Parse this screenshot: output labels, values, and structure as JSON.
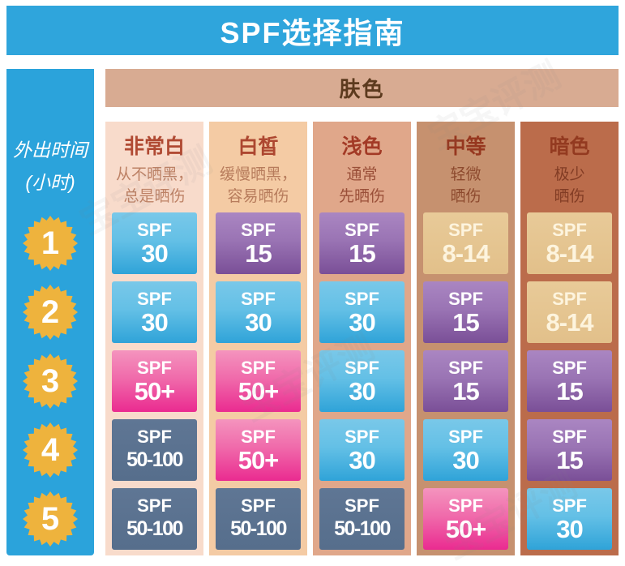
{
  "title": "SPF选择指南",
  "header": {
    "skin_label": "肤色"
  },
  "sidebar": {
    "label": "外出时间\n(小时)"
  },
  "watermark": "宝宝评测",
  "columns": [
    {
      "title": "非常白",
      "desc": "从不晒黑，\n总是晒伤",
      "bg": "#f8dbcb",
      "title_color": "#b04a33",
      "desc_color": "#bd8165"
    },
    {
      "title": "白皙",
      "desc": "缓慢晒黑，\n容易晒伤",
      "bg": "#f4cba4",
      "title_color": "#ad4730",
      "desc_color": "#b77c5c"
    },
    {
      "title": "浅色",
      "desc": "通常\n先晒伤",
      "bg": "#e0a78a",
      "title_color": "#a33a26",
      "desc_color": "#9a4f38"
    },
    {
      "title": "中等",
      "desc": "轻微\n晒伤",
      "bg": "#c6916f",
      "title_color": "#96371f",
      "desc_color": "#8d4a2e"
    },
    {
      "title": "暗色",
      "desc": "极少\n晒伤",
      "bg": "#bb6c4b",
      "title_color": "#933a20",
      "desc_color": "#823c24"
    }
  ],
  "rows": [
    {
      "hours": "1",
      "cells": [
        {
          "label": "SPF",
          "value": "30",
          "style": "blue"
        },
        {
          "label": "SPF",
          "value": "15",
          "style": "purple"
        },
        {
          "label": "SPF",
          "value": "15",
          "style": "purple"
        },
        {
          "label": "SPF",
          "value": "8-14",
          "style": "tan"
        },
        {
          "label": "SPF",
          "value": "8-14",
          "style": "tan"
        }
      ]
    },
    {
      "hours": "2",
      "cells": [
        {
          "label": "SPF",
          "value": "30",
          "style": "blue"
        },
        {
          "label": "SPF",
          "value": "30",
          "style": "blue"
        },
        {
          "label": "SPF",
          "value": "30",
          "style": "blue"
        },
        {
          "label": "SPF",
          "value": "15",
          "style": "purple"
        },
        {
          "label": "SPF",
          "value": "8-14",
          "style": "tan"
        }
      ]
    },
    {
      "hours": "3",
      "cells": [
        {
          "label": "SPF",
          "value": "50+",
          "style": "pink"
        },
        {
          "label": "SPF",
          "value": "50+",
          "style": "pink"
        },
        {
          "label": "SPF",
          "value": "30",
          "style": "blue"
        },
        {
          "label": "SPF",
          "value": "15",
          "style": "purple"
        },
        {
          "label": "SPF",
          "value": "15",
          "style": "purple"
        }
      ]
    },
    {
      "hours": "4",
      "cells": [
        {
          "label": "SPF",
          "value": "50-100",
          "style": "slate"
        },
        {
          "label": "SPF",
          "value": "50+",
          "style": "pink"
        },
        {
          "label": "SPF",
          "value": "30",
          "style": "blue"
        },
        {
          "label": "SPF",
          "value": "30",
          "style": "blue"
        },
        {
          "label": "SPF",
          "value": "15",
          "style": "purple"
        }
      ]
    },
    {
      "hours": "5",
      "cells": [
        {
          "label": "SPF",
          "value": "50-100",
          "style": "slate"
        },
        {
          "label": "SPF",
          "value": "50-100",
          "style": "slate"
        },
        {
          "label": "SPF",
          "value": "50-100",
          "style": "slate"
        },
        {
          "label": "SPF",
          "value": "50+",
          "style": "pink"
        },
        {
          "label": "SPF",
          "value": "30",
          "style": "blue"
        }
      ]
    }
  ],
  "colors": {
    "accent_blue": "#2fa5dc",
    "skin_bar_tan": "#d8ab92",
    "badge_yellow": "#eeb33d",
    "chip_blue_top": "#79c8e9",
    "chip_blue_bottom": "#2fa3d8",
    "chip_purple_top": "#aa86c2",
    "chip_purple_bottom": "#7a4f97",
    "chip_pink_top": "#f494be",
    "chip_pink_bottom": "#ea2b90",
    "chip_tan": "#e2c08a",
    "chip_slate": "#5a7290"
  },
  "chart_data": {
    "type": "table",
    "title": "SPF选择指南",
    "column_group_label": "肤色",
    "row_group_label": "外出时间(小时)",
    "columns": [
      "非常白 (从不晒黑，总是晒伤)",
      "白皙 (缓慢晒黑，容易晒伤)",
      "浅色 (通常先晒伤)",
      "中等 (轻微晒伤)",
      "暗色 (极少晒伤)"
    ],
    "rows": [
      "1",
      "2",
      "3",
      "4",
      "5"
    ],
    "values": [
      [
        "SPF 30",
        "SPF 15",
        "SPF 15",
        "SPF 8-14",
        "SPF 8-14"
      ],
      [
        "SPF 30",
        "SPF 30",
        "SPF 30",
        "SPF 15",
        "SPF 8-14"
      ],
      [
        "SPF 50+",
        "SPF 50+",
        "SPF 30",
        "SPF 15",
        "SPF 15"
      ],
      [
        "SPF 50-100",
        "SPF 50+",
        "SPF 30",
        "SPF 30",
        "SPF 15"
      ],
      [
        "SPF 50-100",
        "SPF 50-100",
        "SPF 50-100",
        "SPF 50+",
        "SPF 30"
      ]
    ]
  }
}
